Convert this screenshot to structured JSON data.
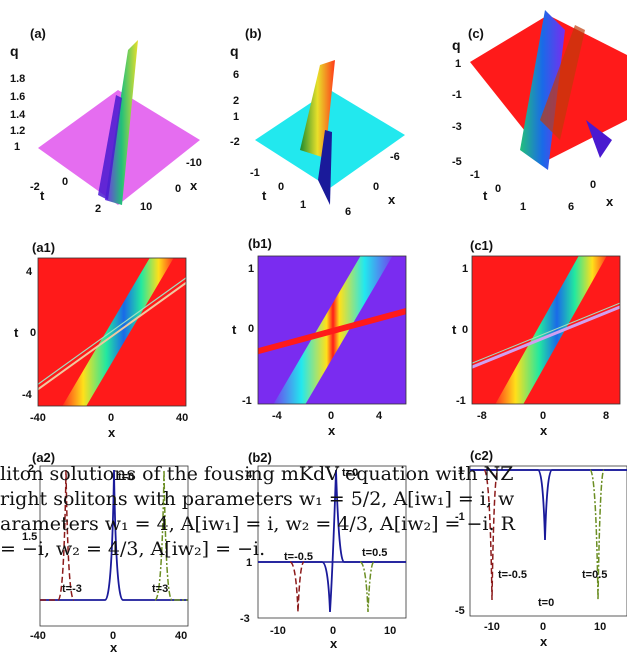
{
  "panels": {
    "a": {
      "label": "(a)",
      "zlabel": "q",
      "zticks": [
        "1.8",
        "1.6",
        "1.4",
        "1.2",
        "1"
      ],
      "tticks": [
        "-2",
        "0",
        "2"
      ],
      "xticks": [
        "-10",
        "0",
        "10"
      ],
      "tlabel": "t",
      "xlabel": "x"
    },
    "b": {
      "label": "(b)",
      "zlabel": "q",
      "zticks": [
        "6",
        "2",
        "1",
        "-2"
      ],
      "tticks": [
        "-1",
        "0",
        "1"
      ],
      "xticks": [
        "-6",
        "0",
        "6"
      ],
      "tlabel": "t",
      "xlabel": "x"
    },
    "c": {
      "label": "(c)",
      "zlabel": "q",
      "zticks": [
        "1",
        "-1",
        "-3",
        "-5"
      ],
      "tticks": [
        "-1",
        "0",
        "1"
      ],
      "xticks": [
        "6",
        "0"
      ],
      "tlabel": "t",
      "xlabel": "x"
    },
    "a1": {
      "label": "(a1)",
      "tlabel": "t",
      "xlabel": "x",
      "tticks": [
        "4",
        "0",
        "-4"
      ],
      "xticks": [
        "-40",
        "0",
        "40"
      ]
    },
    "b1": {
      "label": "(b1)",
      "tlabel": "t",
      "xlabel": "x",
      "tticks": [
        "1",
        "0",
        "-1"
      ],
      "xticks": [
        "-4",
        "0",
        "4"
      ]
    },
    "c1": {
      "label": "(c1)",
      "tlabel": "t",
      "xlabel": "x",
      "tticks": [
        "1",
        "0",
        "-1"
      ],
      "xticks": [
        "-8",
        "0",
        "8"
      ]
    },
    "a2": {
      "label": "(a2)",
      "xlabel": "x",
      "yticks": [
        "2",
        "1.5"
      ],
      "xticks": [
        "-40",
        "0",
        "40"
      ],
      "curve_labels": [
        "t=0",
        "t=-3",
        "t=3"
      ]
    },
    "b2": {
      "label": "(b2)",
      "xlabel": "x",
      "yticks": [
        "4",
        "1",
        "-3"
      ],
      "xticks": [
        "-10",
        "0",
        "10"
      ],
      "curve_labels": [
        "t=0",
        "t=-0.5",
        "t=0.5"
      ]
    },
    "c2": {
      "label": "(c2)",
      "xlabel": "x",
      "yticks": [
        "1",
        "-1",
        "-5"
      ],
      "xticks": [
        "-10",
        "0",
        "10"
      ],
      "curve_labels": [
        "t=0",
        "t=-0.5",
        "t=0.5"
      ]
    }
  },
  "caption": {
    "line1": "liton solutions of the fousing mKdV equation with NZ",
    "line2": "right solitons with parameters w₁ = 5/2, A[iw₁] = i, w",
    "line3": "arameters w₁ = 4, A[iw₁] = i, w₂ = 4/3, A[iw₂] = −i. R",
    "line4": "= −i, w₂ = 4/3, A[iw₂] = −i."
  },
  "colors": {
    "red": "#ff1a1a",
    "violet": "#7a2cf0",
    "cyan": "#22e8ee",
    "magenta": "#e56df0",
    "navy": "#1a1a9a",
    "darkred": "#8b1a1a",
    "olive": "#6b8e23"
  }
}
